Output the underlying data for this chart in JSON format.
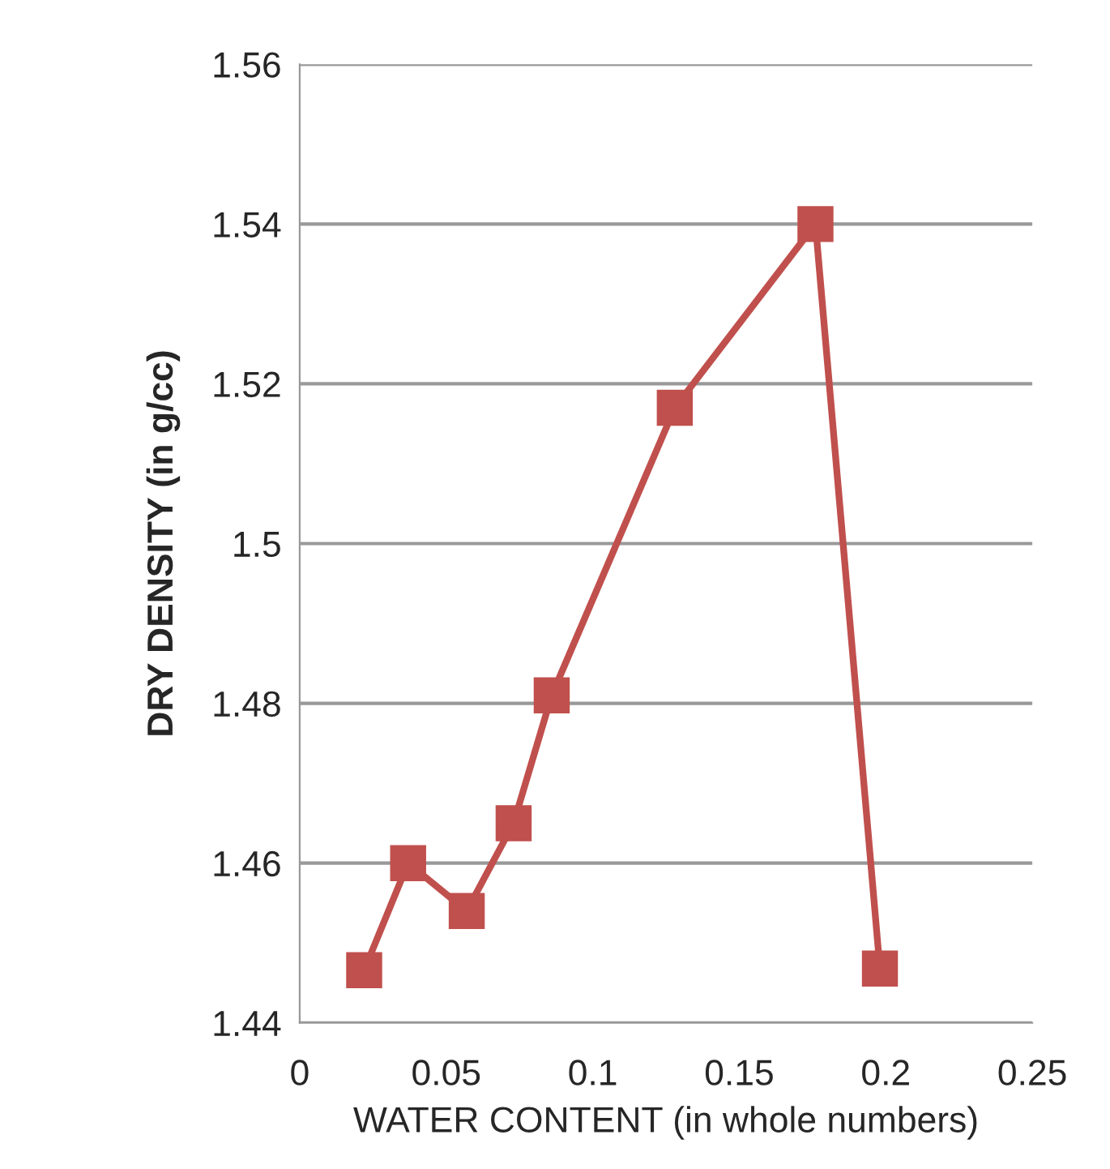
{
  "chart_data": {
    "type": "line",
    "xlabel": "WATER CONTENT (in whole numbers)",
    "ylabel": "DRY DENSITY (in g/cc)",
    "series": [
      {
        "color": "#c0504d",
        "x": [
          0.022,
          0.037,
          0.057,
          0.073,
          0.086,
          0.128,
          0.176,
          0.198
        ],
        "values": [
          1.4466,
          1.46,
          1.454,
          1.465,
          1.481,
          1.517,
          1.54,
          1.4468
        ]
      }
    ],
    "xlim": [
      0,
      0.25
    ],
    "xticks": [
      0,
      0.05,
      0.1,
      0.15,
      0.2,
      0.25
    ],
    "ylim": [
      1.44,
      1.56
    ],
    "yticks": [
      1.44,
      1.46,
      1.48,
      1.5,
      1.52,
      1.54,
      1.56
    ],
    "grid": "y",
    "marker": "square",
    "line_style": "solid"
  }
}
